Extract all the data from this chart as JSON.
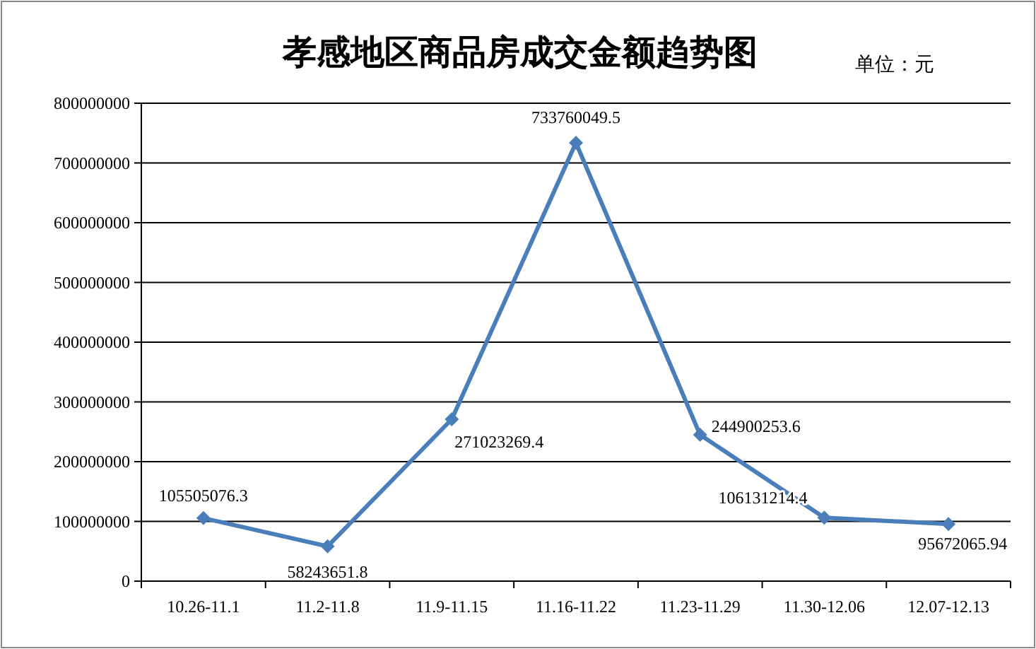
{
  "chart_data": {
    "type": "line",
    "title": "孝感地区商品房成交金额趋势图",
    "annotations": [
      "单位：元"
    ],
    "categories": [
      "10.26-11.1",
      "11.2-11.8",
      "11.9-11.15",
      "11.16-11.22",
      "11.23-11.29",
      "11.30-12.06",
      "12.07-12.13"
    ],
    "series": [
      {
        "color": "#4a7ebb",
        "values": [
          105505076.3,
          58243651.8,
          271023269.4,
          733760049.5,
          244900253.6,
          106131214.4,
          95672065.94
        ]
      }
    ],
    "ylim": [
      0,
      800000000
    ],
    "yticks": [
      0,
      100000000,
      200000000,
      300000000,
      400000000,
      500000000,
      600000000,
      700000000,
      800000000
    ],
    "grid": "y",
    "marker": "diamond",
    "line_style": "solid",
    "data_labels": true
  }
}
